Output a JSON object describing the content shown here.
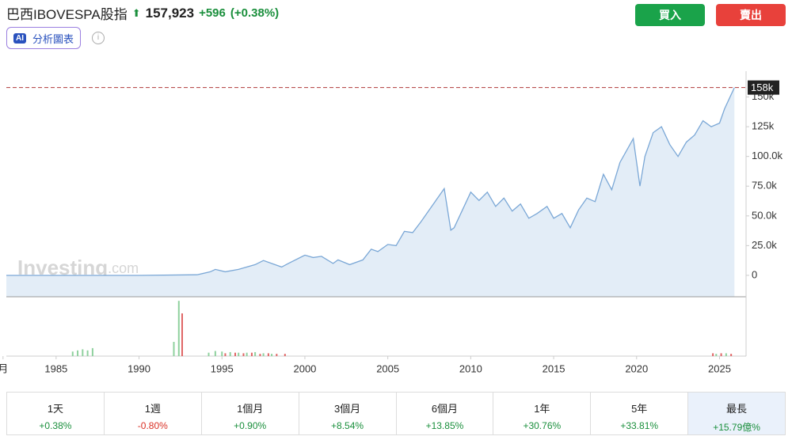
{
  "header": {
    "title": "巴西IBOVESPA股指",
    "price": "157,923",
    "change": "+596",
    "change_pct": "(+0.38%)",
    "buy": "買入",
    "sell": "賣出",
    "ai_badge": "AI",
    "ai_label": "分析圖表"
  },
  "chart_data": {
    "type": "area",
    "color": "#7aa7d6",
    "fill": "#e3edf7",
    "watermark": [
      "Investing",
      ".com"
    ],
    "x": [
      1982.0,
      1990,
      1993.5,
      1994.3,
      1994.6,
      1995.2,
      1996,
      1997,
      1997.5,
      1998.6,
      1999,
      2000,
      2000.5,
      2001,
      2001.7,
      2002,
      2002.7,
      2003.5,
      2004,
      2004.4,
      2005,
      2005.5,
      2006,
      2006.5,
      2007,
      2007.5,
      2007.9,
      2008.4,
      2008.8,
      2009,
      2009.5,
      2010,
      2010.5,
      2011,
      2011.5,
      2012,
      2012.5,
      2013,
      2013.5,
      2014,
      2014.6,
      2015,
      2015.5,
      2016,
      2016.5,
      2017,
      2017.5,
      2018,
      2018.5,
      2019,
      2019.8,
      2020.2,
      2020.5,
      2021,
      2021.5,
      2022,
      2022.5,
      2023,
      2023.5,
      2024,
      2024.5,
      2025,
      2025.3,
      2025.9
    ],
    "values": [
      0,
      0,
      500,
      3000,
      5000,
      3000,
      5000,
      9000,
      12500,
      7000,
      10000,
      17000,
      15000,
      16000,
      10000,
      13000,
      9000,
      13000,
      22000,
      20000,
      26000,
      25000,
      37000,
      36000,
      45000,
      55000,
      63000,
      73000,
      38000,
      40000,
      55000,
      70000,
      63000,
      70000,
      58000,
      65000,
      54000,
      60000,
      48000,
      52000,
      58000,
      48000,
      52000,
      40000,
      55000,
      65000,
      62000,
      85000,
      72000,
      95000,
      115000,
      75000,
      100000,
      120000,
      125000,
      110000,
      100000,
      112000,
      118000,
      130000,
      125000,
      128000,
      140000,
      157923
    ],
    "current_label": "158k",
    "line_color": "#b03a3a",
    "xlim": [
      1982,
      2026.6
    ],
    "ylim": [
      -18000,
      165000
    ],
    "xticks": [
      {
        "value": 1981.8,
        "label": "月"
      },
      1985,
      1990,
      1995,
      2000,
      2005,
      2010,
      2015,
      2020,
      2025
    ],
    "yticks": [
      0,
      {
        "value": 25000,
        "label": "25.0k"
      },
      {
        "value": 50000,
        "label": "50.0k"
      },
      {
        "value": 75000,
        "label": "75.0k"
      },
      {
        "value": 100000,
        "label": "100.0k"
      },
      {
        "value": 125000,
        "label": "125k"
      },
      {
        "value": 150000,
        "label": "150k"
      }
    ],
    "grid": false,
    "volume": {
      "ylim": [
        0,
        100
      ],
      "up": {
        "color": "#8fd19e",
        "x": [
          1986,
          1986.3,
          1986.6,
          1986.9,
          1987.2,
          1992.1,
          1992.4,
          1994.2,
          1994.6,
          1995,
          1995.5,
          1996,
          1996.5,
          1997,
          1997.5,
          1998,
          2024.8,
          2025.4
        ],
        "values": [
          8,
          10,
          12,
          10,
          14,
          25,
          97,
          6,
          9,
          8,
          7,
          6,
          6,
          7,
          5,
          4,
          4,
          5
        ]
      },
      "down": {
        "color": "#e06666",
        "x": [
          1992.6,
          1995.2,
          1995.8,
          1996.3,
          1996.8,
          1997.3,
          1997.8,
          1998.3,
          1998.8,
          2024.6,
          2025.1,
          2025.7
        ],
        "values": [
          75,
          5,
          6,
          5,
          6,
          4,
          5,
          4,
          4,
          5,
          5,
          4
        ]
      }
    }
  },
  "periods": [
    {
      "label": "1天",
      "change": "+0.38%"
    },
    {
      "label": "1週",
      "change": "-0.80%"
    },
    {
      "label": "1個月",
      "change": "+0.90%"
    },
    {
      "label": "3個月",
      "change": "+8.54%"
    },
    {
      "label": "6個月",
      "change": "+13.85%"
    },
    {
      "label": "1年",
      "change": "+30.76%"
    },
    {
      "label": "5年",
      "change": "+33.81%"
    },
    {
      "label": "最長",
      "change": "+15.79億%"
    }
  ]
}
